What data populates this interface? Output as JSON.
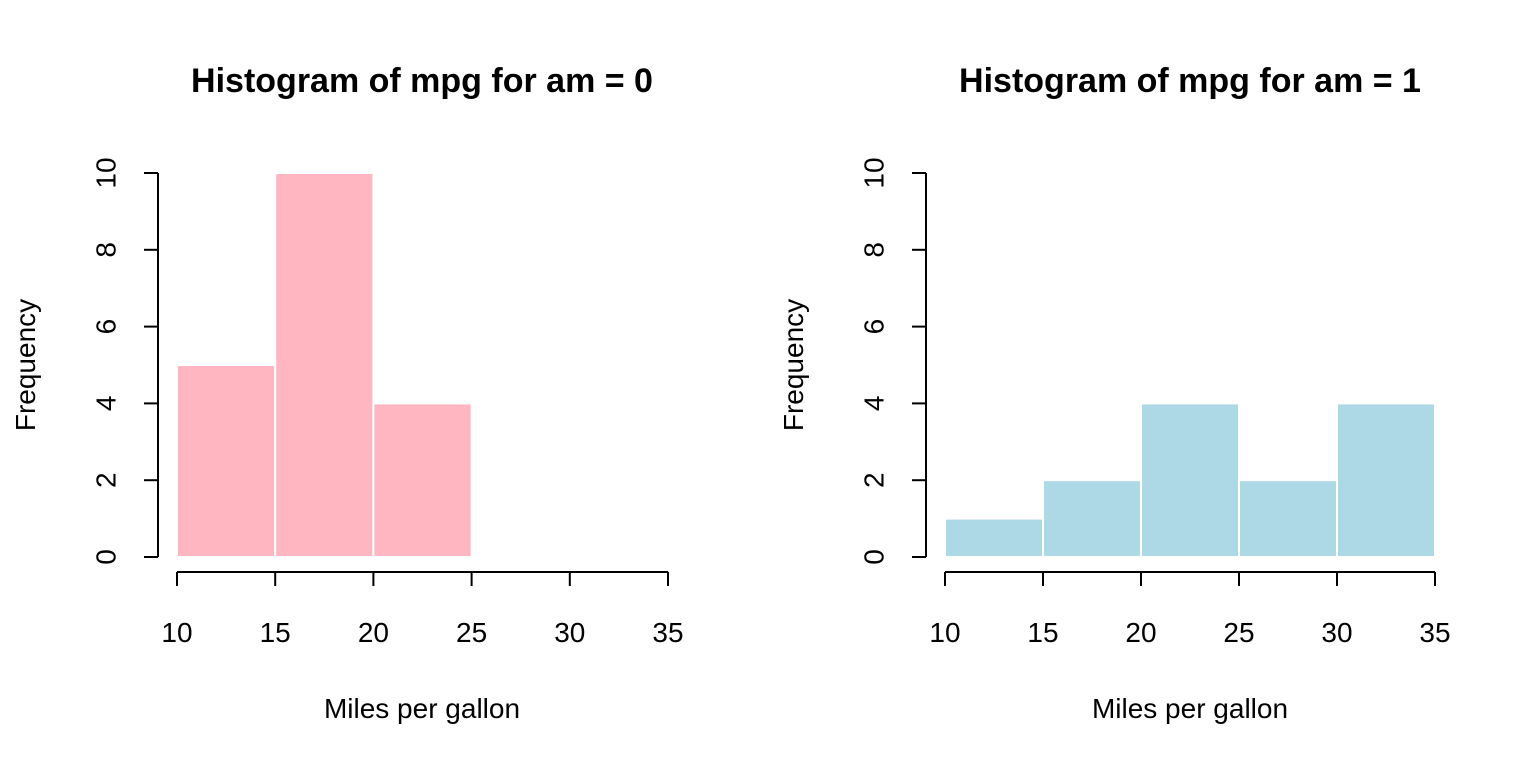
{
  "chart_data": [
    {
      "type": "bar",
      "title": "Histogram of mpg for am = 0",
      "xlabel": "Miles per gallon",
      "ylabel": "Frequency",
      "bins": [
        {
          "from": 10,
          "to": 15,
          "count": 5
        },
        {
          "from": 15,
          "to": 20,
          "count": 10
        },
        {
          "from": 20,
          "to": 25,
          "count": 4
        }
      ],
      "xlim": [
        10,
        35
      ],
      "ylim": [
        0,
        10
      ],
      "xticks": [
        10,
        15,
        20,
        25,
        30,
        35
      ],
      "yticks": [
        0,
        2,
        4,
        6,
        8,
        10
      ],
      "color": "#FFB6C1",
      "border_color": "#FFFFFF",
      "grid": false
    },
    {
      "type": "bar",
      "title": "Histogram of mpg for am = 1",
      "xlabel": "Miles per gallon",
      "ylabel": "Frequency",
      "bins": [
        {
          "from": 10,
          "to": 15,
          "count": 1
        },
        {
          "from": 15,
          "to": 20,
          "count": 2
        },
        {
          "from": 20,
          "to": 25,
          "count": 4
        },
        {
          "from": 25,
          "to": 30,
          "count": 2
        },
        {
          "from": 30,
          "to": 35,
          "count": 4
        }
      ],
      "xlim": [
        10,
        35
      ],
      "ylim": [
        0,
        10
      ],
      "xticks": [
        10,
        15,
        20,
        25,
        30,
        35
      ],
      "yticks": [
        0,
        2,
        4,
        6,
        8,
        10
      ],
      "color": "#ADD8E6",
      "border_color": "#FFFFFF",
      "grid": false
    }
  ]
}
